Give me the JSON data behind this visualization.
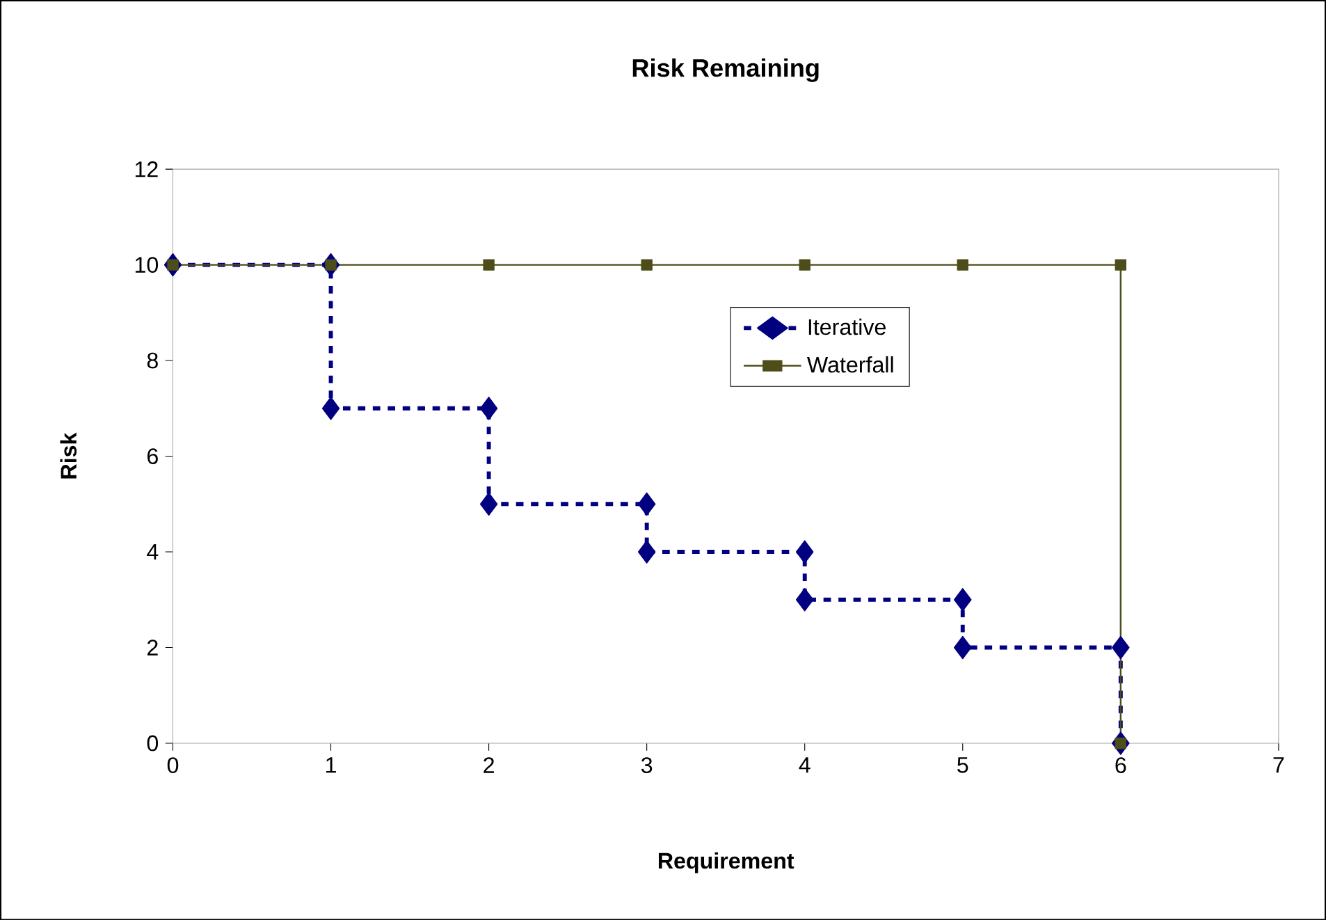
{
  "chart_data": {
    "type": "line",
    "title": "Risk Remaining",
    "xlabel": "Requirement",
    "ylabel": "Risk",
    "xlim": [
      0,
      7
    ],
    "xticks": [
      0,
      1,
      2,
      3,
      4,
      5,
      6,
      7
    ],
    "ylim": [
      0,
      12
    ],
    "yticks": [
      0,
      2,
      4,
      6,
      8,
      10,
      12
    ],
    "grid": false,
    "legend": "right",
    "series": [
      {
        "name": "Iterative",
        "color": "#000080",
        "marker": "diamond",
        "line_style": "dashed",
        "x": [
          0,
          1,
          1,
          2,
          2,
          3,
          3,
          4,
          4,
          5,
          5,
          6,
          6
        ],
        "values": [
          10,
          10,
          7,
          7,
          5,
          5,
          4,
          4,
          3,
          3,
          2,
          2,
          0
        ]
      },
      {
        "name": "Waterfall",
        "color": "#4d4d1a",
        "marker": "square",
        "line_style": "solid",
        "x": [
          0,
          1,
          2,
          3,
          4,
          5,
          6,
          6
        ],
        "values": [
          10,
          10,
          10,
          10,
          10,
          10,
          10,
          0
        ]
      }
    ]
  }
}
